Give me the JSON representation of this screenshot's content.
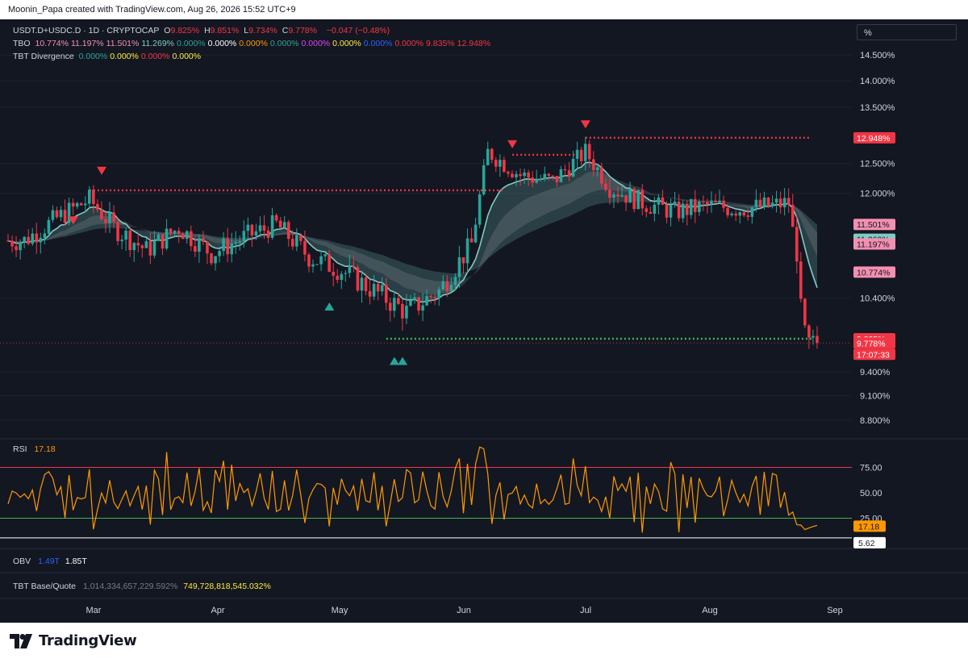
{
  "header": {
    "attribution": "Moonin_Papa created with TradingView.com, Aug 26, 2026 15:52 UTC+9"
  },
  "legend": {
    "symbol": "USDT.D+USDC.D · 1D · CRYPTOCAP",
    "ohlc": [
      {
        "k": "O",
        "v": "9.825%"
      },
      {
        "k": "H",
        "v": "9.851%"
      },
      {
        "k": "L",
        "v": "9.734%"
      },
      {
        "k": "C",
        "v": "9.778%"
      }
    ],
    "change": "−0.047 (−0.48%)",
    "tbo_label": "TBO",
    "tbo_values": [
      {
        "v": "10.774%",
        "color": "#f48fb1"
      },
      {
        "v": "11.197%",
        "color": "#f48fb1"
      },
      {
        "v": "11.501%",
        "color": "#f48fb1"
      },
      {
        "v": "11.269%",
        "color": "#80cbc4"
      },
      {
        "v": "0.000%",
        "color": "#26a69a"
      },
      {
        "v": "0.000%",
        "color": "#ffffff"
      },
      {
        "v": "0.000%",
        "color": "#ff9800"
      },
      {
        "v": "0.000%",
        "color": "#26a69a"
      },
      {
        "v": "0.000%",
        "color": "#e040fb"
      },
      {
        "v": "0.000%",
        "color": "#ffeb3b"
      },
      {
        "v": "0.000%",
        "color": "#2962ff"
      },
      {
        "v": "0.000%",
        "color": "#f23645"
      },
      {
        "v": "9.835%",
        "color": "#f23645"
      },
      {
        "v": "12.948%",
        "color": "#f23645"
      }
    ],
    "div_label": "TBT Divergence",
    "div_values": [
      {
        "v": "0.000%",
        "color": "#26a69a"
      },
      {
        "v": "0.000%",
        "color": "#ffeb3b"
      },
      {
        "v": "0.000%",
        "color": "#f23645"
      },
      {
        "v": "0.000%",
        "color": "#ffeb3b"
      }
    ]
  },
  "scale_mode_label": "%",
  "rsi_legend": {
    "label": "RSI",
    "value": "17.18"
  },
  "obv_legend": {
    "label": "OBV",
    "v1": "1.49T",
    "v2": "1.85T"
  },
  "tbt_legend": {
    "label": "TBT Base/Quote",
    "v1": "1,014,334,657,229.592%",
    "v2": "749,728,818,545.032%"
  },
  "brand": {
    "name": "TradingView"
  },
  "colors": {
    "up": "#26a69a",
    "down": "#f23645",
    "bg": "#131722",
    "text": "#d1d4dc",
    "rsi": "#ff9800"
  },
  "chart_data": {
    "type": "candlestick",
    "price_axis": {
      "ticks": [
        "14.500%",
        "14.000%",
        "13.500%",
        "12.500%",
        "12.000%",
        "10.400%",
        "9.400%",
        "9.100%",
        "8.800%"
      ],
      "scale": "log"
    },
    "price_badges": [
      {
        "text": "12.948%",
        "color": "#f23645"
      },
      {
        "text": "11.501%",
        "color": "#f48fb1"
      },
      {
        "text": "11.269%",
        "color": "#80cbc4"
      },
      {
        "text": "11.197%",
        "color": "#f48fb1"
      },
      {
        "text": "10.774%",
        "color": "#f48fb1"
      },
      {
        "text": "9.835%",
        "color": "#f23645"
      },
      {
        "text": "9.778%",
        "color": "#f23645"
      },
      {
        "text": "17:07:33",
        "color": "#f23645"
      }
    ],
    "x_axis": {
      "labels": [
        "Mar",
        "Apr",
        "May",
        "Jun",
        "Jul",
        "Aug",
        "Sep"
      ]
    },
    "series": [
      {
        "name": "USDT.D+USDC.D",
        "points": [
          {
            "x": "Feb 12",
            "y": 11.25
          },
          {
            "x": "Feb 20",
            "y": 11.6
          },
          {
            "x": "Feb 28",
            "y": 11.9
          },
          {
            "x": "Mar 6",
            "y": 11.45
          },
          {
            "x": "Mar 14",
            "y": 11.1
          },
          {
            "x": "Mar 22",
            "y": 11.45
          },
          {
            "x": "Mar 30",
            "y": 11.05
          },
          {
            "x": "Apr 7",
            "y": 11.3
          },
          {
            "x": "Apr 15",
            "y": 11.5
          },
          {
            "x": "Apr 23",
            "y": 11.0
          },
          {
            "x": "May 1",
            "y": 10.8
          },
          {
            "x": "May 9",
            "y": 10.5
          },
          {
            "x": "May 17",
            "y": 10.2
          },
          {
            "x": "May 25",
            "y": 10.5
          },
          {
            "x": "Jun 2",
            "y": 11.2
          },
          {
            "x": "Jun 6",
            "y": 12.7
          },
          {
            "x": "Jun 14",
            "y": 12.3
          },
          {
            "x": "Jun 22",
            "y": 12.2
          },
          {
            "x": "Jun 30",
            "y": 12.7
          },
          {
            "x": "Jul 6",
            "y": 12.1
          },
          {
            "x": "Jul 14",
            "y": 11.85
          },
          {
            "x": "Jul 22",
            "y": 11.7
          },
          {
            "x": "Jul 30",
            "y": 11.8
          },
          {
            "x": "Aug 7",
            "y": 11.75
          },
          {
            "x": "Aug 15",
            "y": 11.8
          },
          {
            "x": "Aug 19",
            "y": 11.85
          },
          {
            "x": "Aug 21",
            "y": 10.9
          },
          {
            "x": "Aug 23",
            "y": 9.95
          },
          {
            "x": "Aug 26",
            "y": 9.778
          }
        ]
      }
    ],
    "levels": [
      {
        "name": "resistance",
        "value": 12.948
      },
      {
        "name": "resistance",
        "value": 12.05
      },
      {
        "name": "resistance",
        "value": 12.65
      },
      {
        "name": "support",
        "value": 9.835
      }
    ],
    "rsi": {
      "levels": [
        "75.00",
        "50.00",
        "25.00"
      ],
      "current": "17.18",
      "low_badge": "5.62"
    }
  }
}
